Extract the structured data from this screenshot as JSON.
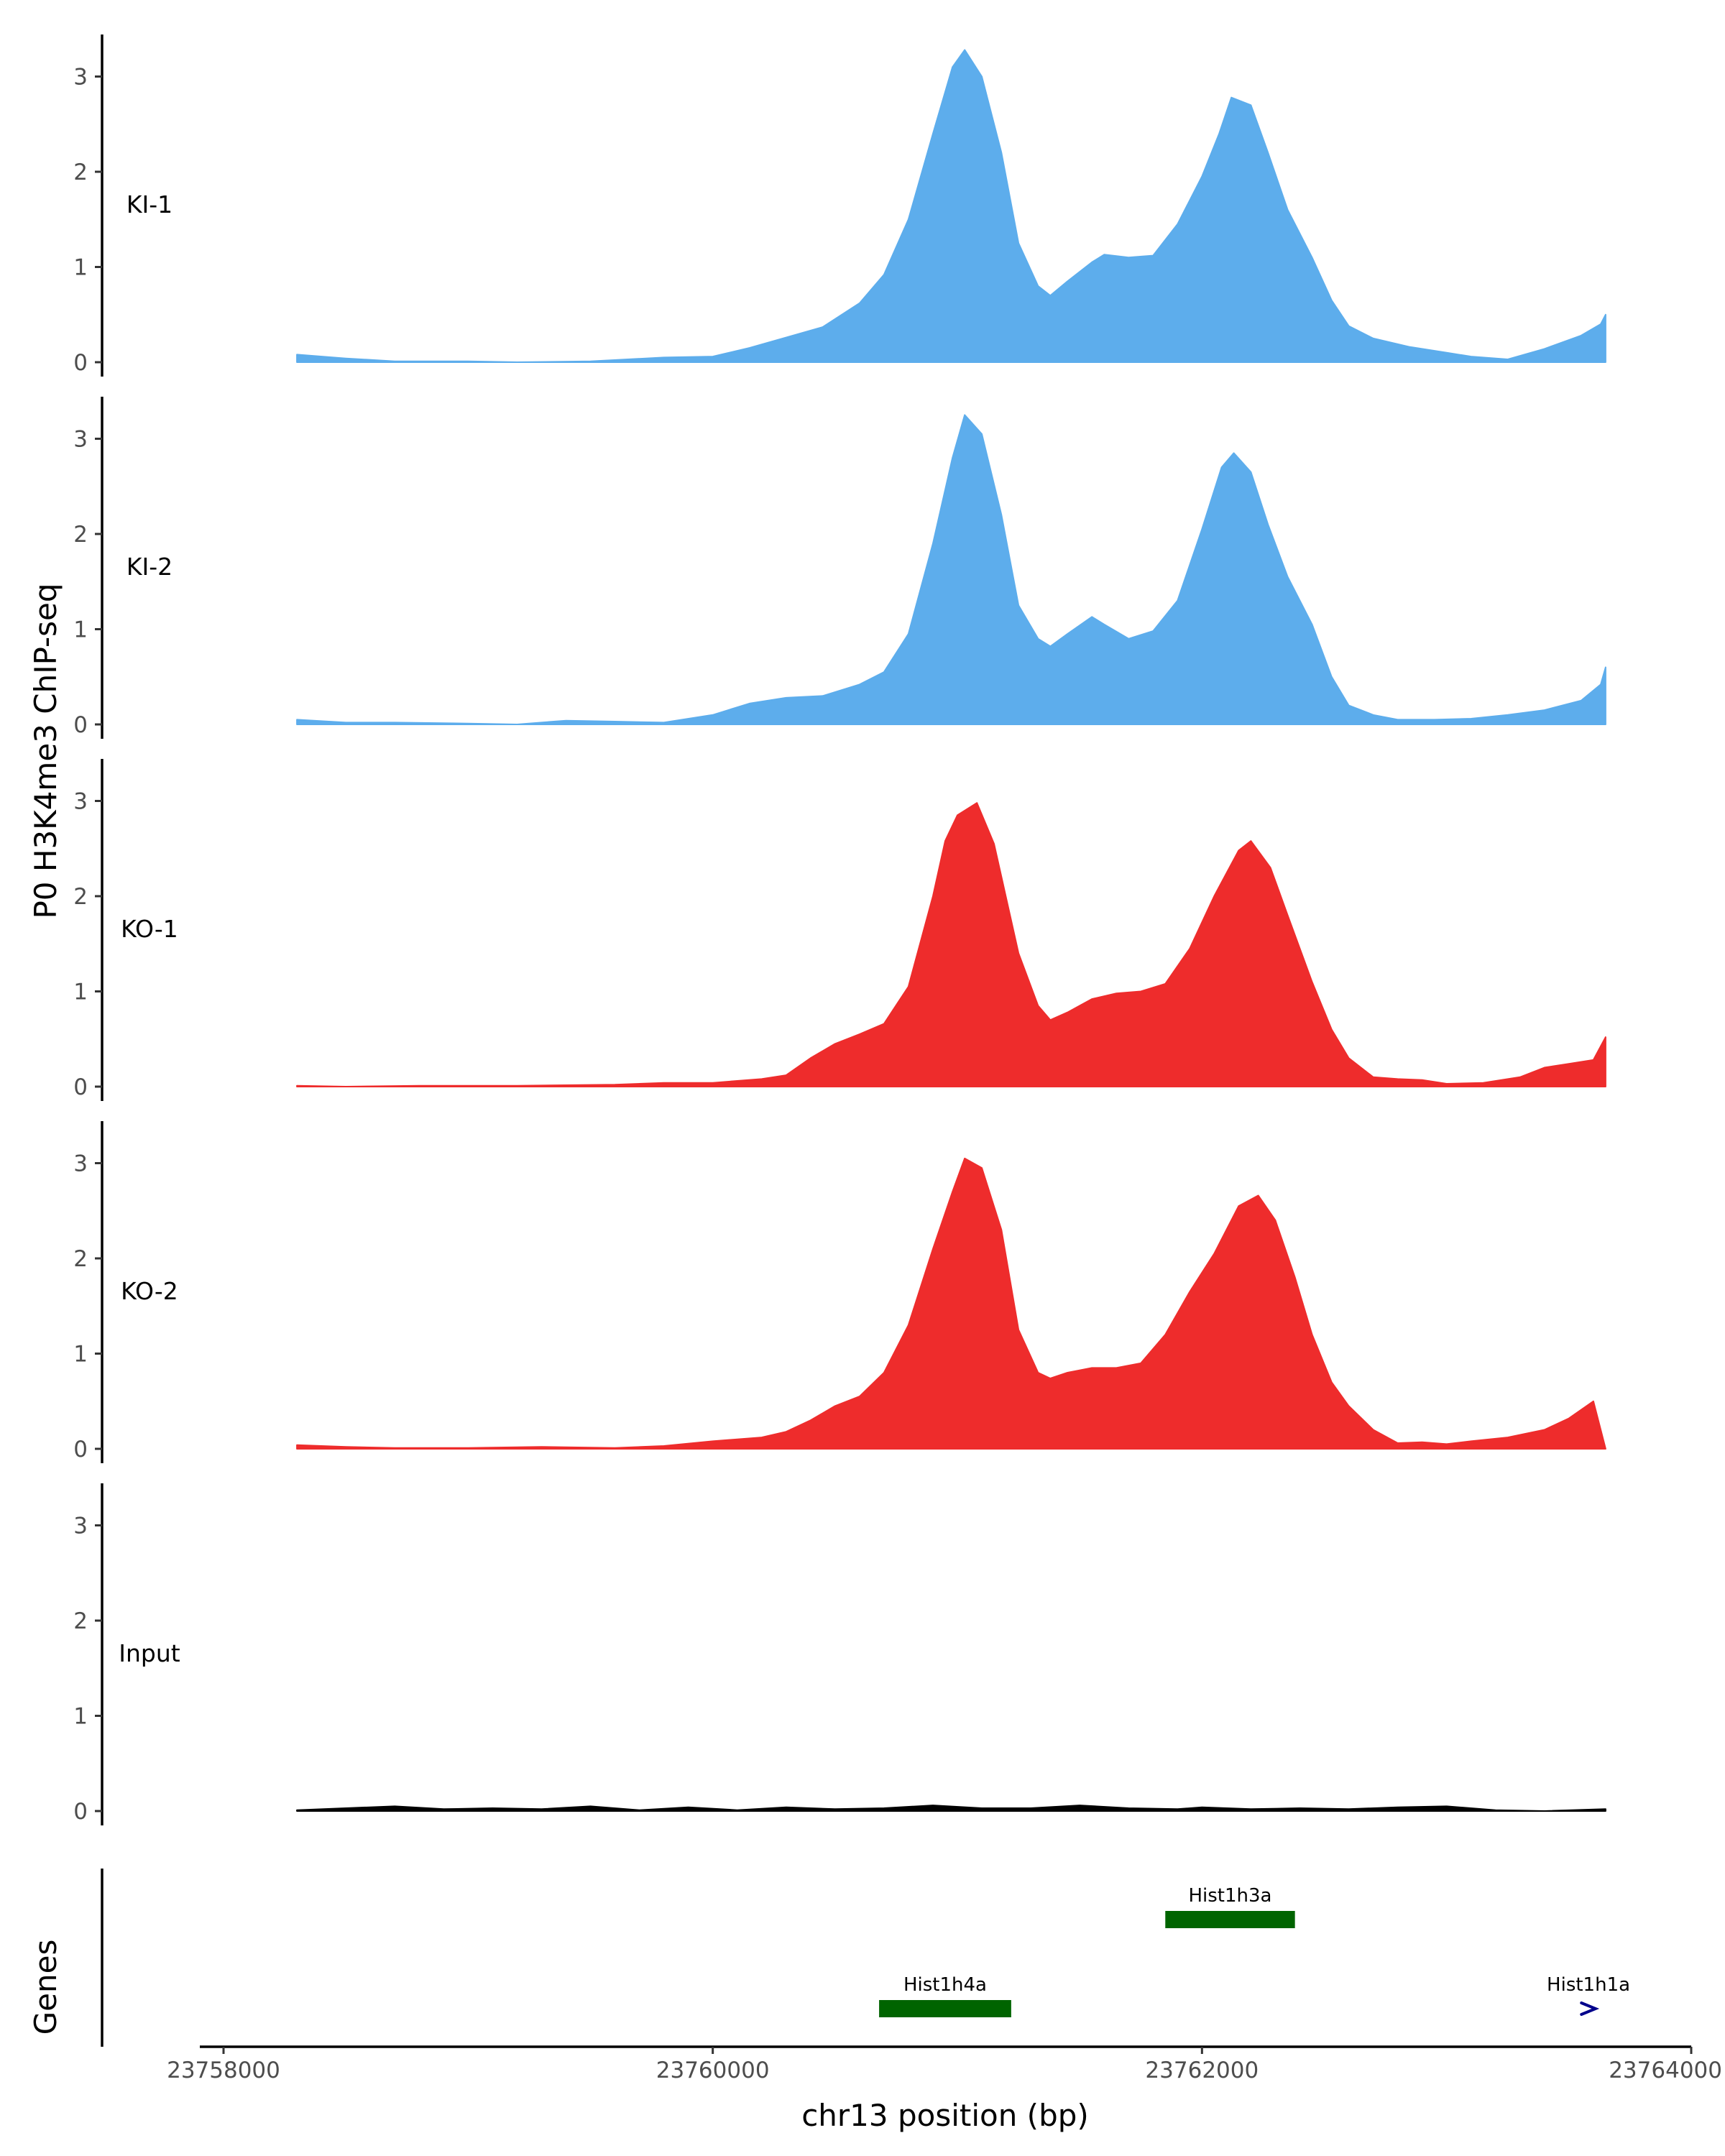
{
  "chart_data": {
    "type": "area",
    "region": {
      "chrom": "chr13",
      "start": 23758300,
      "end": 23763650
    },
    "xlabel": "chr13 position (bp)",
    "ylabel": "P0 H3K4me3 ChIP-seq",
    "genes_label": "Genes",
    "x_ticks": [
      23758000,
      23760000,
      23762000,
      23764000
    ],
    "x_tick_labels": [
      "23758000",
      "23760000",
      "23762000",
      "23764000"
    ],
    "xlim": [
      23757900,
      23764000
    ],
    "ylim": [
      0,
      3.4
    ],
    "y_ticks": [
      0,
      1,
      2,
      3
    ],
    "y_tick_labels": [
      "0",
      "1",
      "2",
      "3"
    ],
    "tracks": [
      {
        "name": "KI-1",
        "color": "#5DADEC",
        "points": [
          [
            23758300,
            0.08
          ],
          [
            23758500,
            0.04
          ],
          [
            23758700,
            0.01
          ],
          [
            23759000,
            0.01
          ],
          [
            23759200,
            0.0
          ],
          [
            23759500,
            0.01
          ],
          [
            23759800,
            0.05
          ],
          [
            23760000,
            0.06
          ],
          [
            23760150,
            0.15
          ],
          [
            23760300,
            0.26
          ],
          [
            23760450,
            0.37
          ],
          [
            23760600,
            0.62
          ],
          [
            23760700,
            0.92
          ],
          [
            23760800,
            1.5
          ],
          [
            23760900,
            2.4
          ],
          [
            23760980,
            3.1
          ],
          [
            23761030,
            3.28
          ],
          [
            23761100,
            3.0
          ],
          [
            23761180,
            2.2
          ],
          [
            23761250,
            1.25
          ],
          [
            23761330,
            0.8
          ],
          [
            23761380,
            0.7
          ],
          [
            23761450,
            0.85
          ],
          [
            23761550,
            1.05
          ],
          [
            23761600,
            1.13
          ],
          [
            23761700,
            1.1
          ],
          [
            23761800,
            1.12
          ],
          [
            23761900,
            1.45
          ],
          [
            23762000,
            1.95
          ],
          [
            23762070,
            2.4
          ],
          [
            23762120,
            2.78
          ],
          [
            23762200,
            2.7
          ],
          [
            23762270,
            2.2
          ],
          [
            23762350,
            1.6
          ],
          [
            23762450,
            1.1
          ],
          [
            23762530,
            0.65
          ],
          [
            23762600,
            0.38
          ],
          [
            23762700,
            0.25
          ],
          [
            23762850,
            0.16
          ],
          [
            23763000,
            0.1
          ],
          [
            23763100,
            0.06
          ],
          [
            23763250,
            0.03
          ],
          [
            23763400,
            0.14
          ],
          [
            23763550,
            0.28
          ],
          [
            23763630,
            0.4
          ],
          [
            23763650,
            0.5
          ]
        ]
      },
      {
        "name": "KI-2",
        "color": "#5DADEC",
        "points": [
          [
            23758300,
            0.05
          ],
          [
            23758500,
            0.02
          ],
          [
            23758700,
            0.02
          ],
          [
            23759000,
            0.01
          ],
          [
            23759200,
            0.0
          ],
          [
            23759400,
            0.04
          ],
          [
            23759600,
            0.03
          ],
          [
            23759800,
            0.02
          ],
          [
            23760000,
            0.1
          ],
          [
            23760150,
            0.22
          ],
          [
            23760300,
            0.28
          ],
          [
            23760450,
            0.3
          ],
          [
            23760600,
            0.42
          ],
          [
            23760700,
            0.55
          ],
          [
            23760800,
            0.95
          ],
          [
            23760900,
            1.9
          ],
          [
            23760980,
            2.8
          ],
          [
            23761030,
            3.25
          ],
          [
            23761100,
            3.05
          ],
          [
            23761180,
            2.2
          ],
          [
            23761250,
            1.25
          ],
          [
            23761330,
            0.9
          ],
          [
            23761380,
            0.82
          ],
          [
            23761450,
            0.95
          ],
          [
            23761550,
            1.13
          ],
          [
            23761600,
            1.05
          ],
          [
            23761700,
            0.9
          ],
          [
            23761800,
            0.98
          ],
          [
            23761900,
            1.3
          ],
          [
            23762000,
            2.05
          ],
          [
            23762080,
            2.7
          ],
          [
            23762130,
            2.85
          ],
          [
            23762200,
            2.65
          ],
          [
            23762270,
            2.1
          ],
          [
            23762350,
            1.55
          ],
          [
            23762450,
            1.05
          ],
          [
            23762530,
            0.5
          ],
          [
            23762600,
            0.2
          ],
          [
            23762700,
            0.1
          ],
          [
            23762800,
            0.05
          ],
          [
            23762950,
            0.05
          ],
          [
            23763100,
            0.06
          ],
          [
            23763250,
            0.1
          ],
          [
            23763400,
            0.15
          ],
          [
            23763550,
            0.25
          ],
          [
            23763630,
            0.42
          ],
          [
            23763650,
            0.6
          ]
        ]
      },
      {
        "name": "KO-1",
        "color": "#EE2C2C",
        "points": [
          [
            23758300,
            0.01
          ],
          [
            23758500,
            0.0
          ],
          [
            23758800,
            0.01
          ],
          [
            23759200,
            0.01
          ],
          [
            23759600,
            0.02
          ],
          [
            23759800,
            0.04
          ],
          [
            23760000,
            0.04
          ],
          [
            23760100,
            0.06
          ],
          [
            23760200,
            0.08
          ],
          [
            23760300,
            0.12
          ],
          [
            23760400,
            0.3
          ],
          [
            23760500,
            0.45
          ],
          [
            23760600,
            0.55
          ],
          [
            23760700,
            0.66
          ],
          [
            23760800,
            1.05
          ],
          [
            23760900,
            2.0
          ],
          [
            23760950,
            2.58
          ],
          [
            23761000,
            2.85
          ],
          [
            23761080,
            2.98
          ],
          [
            23761150,
            2.55
          ],
          [
            23761250,
            1.4
          ],
          [
            23761330,
            0.85
          ],
          [
            23761380,
            0.7
          ],
          [
            23761450,
            0.78
          ],
          [
            23761550,
            0.92
          ],
          [
            23761650,
            0.98
          ],
          [
            23761750,
            1.0
          ],
          [
            23761850,
            1.08
          ],
          [
            23761950,
            1.45
          ],
          [
            23762050,
            2.0
          ],
          [
            23762150,
            2.48
          ],
          [
            23762200,
            2.58
          ],
          [
            23762280,
            2.3
          ],
          [
            23762350,
            1.8
          ],
          [
            23762450,
            1.1
          ],
          [
            23762530,
            0.6
          ],
          [
            23762600,
            0.3
          ],
          [
            23762700,
            0.1
          ],
          [
            23762800,
            0.08
          ],
          [
            23762900,
            0.07
          ],
          [
            23763000,
            0.03
          ],
          [
            23763150,
            0.04
          ],
          [
            23763300,
            0.1
          ],
          [
            23763400,
            0.2
          ],
          [
            23763500,
            0.24
          ],
          [
            23763600,
            0.28
          ],
          [
            23763650,
            0.52
          ]
        ]
      },
      {
        "name": "KO-2",
        "color": "#EE2C2C",
        "points": [
          [
            23758300,
            0.04
          ],
          [
            23758500,
            0.02
          ],
          [
            23758700,
            0.01
          ],
          [
            23759000,
            0.01
          ],
          [
            23759300,
            0.02
          ],
          [
            23759600,
            0.01
          ],
          [
            23759800,
            0.03
          ],
          [
            23760000,
            0.08
          ],
          [
            23760200,
            0.12
          ],
          [
            23760300,
            0.18
          ],
          [
            23760400,
            0.3
          ],
          [
            23760500,
            0.45
          ],
          [
            23760600,
            0.55
          ],
          [
            23760700,
            0.8
          ],
          [
            23760800,
            1.3
          ],
          [
            23760900,
            2.1
          ],
          [
            23760980,
            2.7
          ],
          [
            23761030,
            3.05
          ],
          [
            23761100,
            2.95
          ],
          [
            23761180,
            2.3
          ],
          [
            23761250,
            1.25
          ],
          [
            23761330,
            0.8
          ],
          [
            23761380,
            0.74
          ],
          [
            23761450,
            0.8
          ],
          [
            23761550,
            0.85
          ],
          [
            23761650,
            0.85
          ],
          [
            23761750,
            0.9
          ],
          [
            23761850,
            1.2
          ],
          [
            23761950,
            1.65
          ],
          [
            23762050,
            2.05
          ],
          [
            23762150,
            2.55
          ],
          [
            23762230,
            2.66
          ],
          [
            23762300,
            2.4
          ],
          [
            23762380,
            1.8
          ],
          [
            23762450,
            1.2
          ],
          [
            23762530,
            0.7
          ],
          [
            23762600,
            0.45
          ],
          [
            23762700,
            0.2
          ],
          [
            23762800,
            0.06
          ],
          [
            23762900,
            0.07
          ],
          [
            23763000,
            0.05
          ],
          [
            23763100,
            0.08
          ],
          [
            23763250,
            0.12
          ],
          [
            23763400,
            0.2
          ],
          [
            23763500,
            0.32
          ],
          [
            23763600,
            0.5
          ],
          [
            23763650,
            0.0
          ]
        ]
      },
      {
        "name": "Input",
        "color": "#000000",
        "points": [
          [
            23758300,
            0.01
          ],
          [
            23758500,
            0.03
          ],
          [
            23758700,
            0.05
          ],
          [
            23758900,
            0.02
          ],
          [
            23759100,
            0.03
          ],
          [
            23759300,
            0.02
          ],
          [
            23759500,
            0.05
          ],
          [
            23759700,
            0.01
          ],
          [
            23759900,
            0.04
          ],
          [
            23760100,
            0.01
          ],
          [
            23760300,
            0.04
          ],
          [
            23760500,
            0.02
          ],
          [
            23760700,
            0.03
          ],
          [
            23760900,
            0.06
          ],
          [
            23761100,
            0.03
          ],
          [
            23761300,
            0.03
          ],
          [
            23761500,
            0.06
          ],
          [
            23761700,
            0.03
          ],
          [
            23761900,
            0.02
          ],
          [
            23762000,
            0.04
          ],
          [
            23762200,
            0.02
          ],
          [
            23762400,
            0.03
          ],
          [
            23762600,
            0.02
          ],
          [
            23762800,
            0.04
          ],
          [
            23763000,
            0.05
          ],
          [
            23763200,
            0.01
          ],
          [
            23763400,
            0.0
          ],
          [
            23763650,
            0.02
          ]
        ]
      }
    ],
    "genes": [
      {
        "name": "Hist1h3a",
        "start": 23761850,
        "end": 23762380,
        "color": "#006400",
        "row": 1
      },
      {
        "name": "Hist1h4a",
        "start": 23760680,
        "end": 23761220,
        "color": "#006400",
        "row": 2
      },
      {
        "name": "Hist1h1a",
        "start": 23763560,
        "end": 23763600,
        "color": "#00008B",
        "row": 2
      }
    ]
  }
}
